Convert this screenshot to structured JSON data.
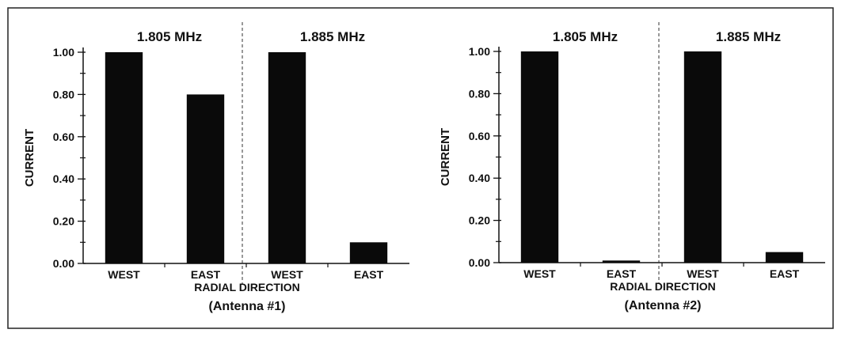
{
  "chart_data": [
    {
      "type": "bar",
      "ylabel": "CURRENT",
      "xlabel": "RADIAL DIRECTION",
      "caption": "(Antenna #1)",
      "ylim": [
        0,
        1
      ],
      "yticks": [
        "0.00",
        "0.20",
        "0.40",
        "0.60",
        "0.80",
        "1.00"
      ],
      "groups": [
        {
          "label": "1.805 MHz",
          "categories": [
            "WEST",
            "EAST"
          ],
          "values": [
            1.0,
            0.8
          ]
        },
        {
          "label": "1.885 MHz",
          "categories": [
            "WEST",
            "EAST"
          ],
          "values": [
            1.0,
            0.1
          ]
        }
      ],
      "bar_color": "#0a0a0a",
      "grid": false,
      "legend": "none"
    },
    {
      "type": "bar",
      "ylabel": "CURRENT",
      "xlabel": "RADIAL DIRECTION",
      "caption": "(Antenna #2)",
      "ylim": [
        0,
        1
      ],
      "yticks": [
        "0.00",
        "0.20",
        "0.40",
        "0.60",
        "0.80",
        "1.00"
      ],
      "groups": [
        {
          "label": "1.805 MHz",
          "categories": [
            "WEST",
            "EAST"
          ],
          "values": [
            1.0,
            0.01
          ]
        },
        {
          "label": "1.885 MHz",
          "categories": [
            "WEST",
            "EAST"
          ],
          "values": [
            1.0,
            0.05
          ]
        }
      ],
      "bar_color": "#0a0a0a",
      "grid": false,
      "legend": "none"
    }
  ]
}
